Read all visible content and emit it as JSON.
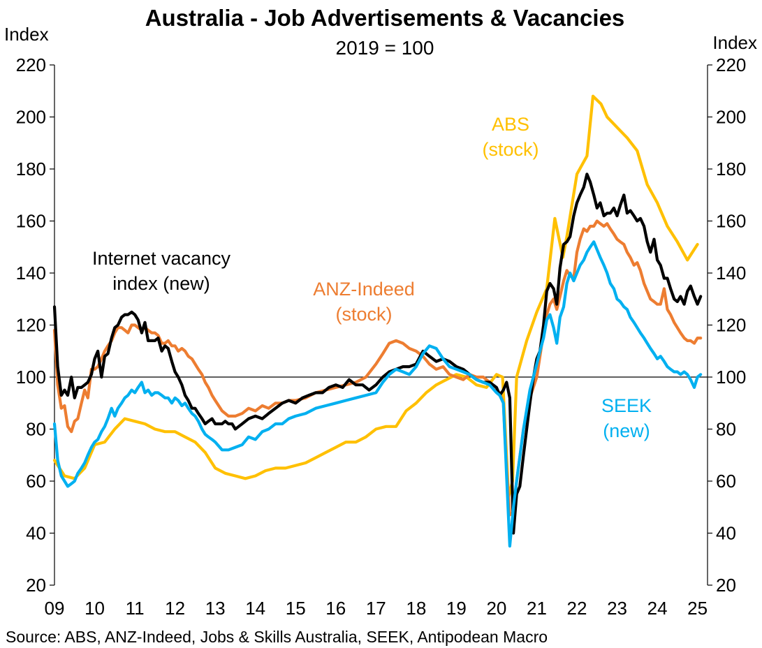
{
  "chart_data": {
    "type": "line",
    "title": "Australia - Job Advertisements & Vacancies",
    "subtitle": "2019 = 100",
    "ylabel_left": "Index",
    "ylabel_right": "Index",
    "ylim": [
      20,
      220
    ],
    "yticks": [
      20,
      40,
      60,
      80,
      100,
      120,
      140,
      160,
      180,
      200,
      220
    ],
    "xlim": [
      2009,
      2025.25
    ],
    "xticks": [
      {
        "value": 2009,
        "label": "09"
      },
      {
        "value": 2010,
        "label": "10"
      },
      {
        "value": 2011,
        "label": "11"
      },
      {
        "value": 2012,
        "label": "12"
      },
      {
        "value": 2013,
        "label": "13"
      },
      {
        "value": 2014,
        "label": "14"
      },
      {
        "value": 2015,
        "label": "15"
      },
      {
        "value": 2016,
        "label": "16"
      },
      {
        "value": 2017,
        "label": "17"
      },
      {
        "value": 2018,
        "label": "18"
      },
      {
        "value": 2019,
        "label": "19"
      },
      {
        "value": 2020,
        "label": "20"
      },
      {
        "value": 2021,
        "label": "21"
      },
      {
        "value": 2022,
        "label": "22"
      },
      {
        "value": 2023,
        "label": "23"
      },
      {
        "value": 2024,
        "label": "24"
      },
      {
        "value": 2025,
        "label": "25"
      }
    ],
    "reference_line": 100,
    "grid": false,
    "legend": "inline labels",
    "source": "Source: ABS, ANZ-Indeed, Jobs & Skills Australia, SEEK, Antipodean Macro",
    "series": [
      {
        "key": "abs",
        "label_lines": [
          "ABS",
          "(stock)"
        ],
        "color": "#FFC000",
        "x": [
          2009.0,
          2009.25,
          2009.5,
          2009.75,
          2010.0,
          2010.25,
          2010.5,
          2010.75,
          2011.0,
          2011.25,
          2011.5,
          2011.75,
          2012.0,
          2012.25,
          2012.5,
          2012.75,
          2013.0,
          2013.25,
          2013.5,
          2013.75,
          2014.0,
          2014.25,
          2014.5,
          2014.75,
          2015.0,
          2015.25,
          2015.5,
          2015.75,
          2016.0,
          2016.25,
          2016.5,
          2016.75,
          2017.0,
          2017.25,
          2017.5,
          2017.75,
          2018.0,
          2018.25,
          2018.5,
          2018.75,
          2019.0,
          2019.25,
          2019.5,
          2019.75,
          2020.0,
          2020.15,
          2020.3,
          2020.4,
          2020.5,
          2020.75,
          2021.0,
          2021.25,
          2021.45,
          2021.65,
          2021.75,
          2022.0,
          2022.25,
          2022.4,
          2022.6,
          2022.75,
          2023.0,
          2023.25,
          2023.5,
          2023.75,
          2024.0,
          2024.25,
          2024.5,
          2024.75,
          2025.0
        ],
        "y": [
          68,
          62,
          61,
          65,
          74,
          75,
          80,
          84,
          83,
          82,
          80,
          79,
          79,
          77,
          75,
          71,
          65,
          63,
          62,
          61,
          62,
          64,
          65,
          65,
          66,
          67,
          69,
          71,
          73,
          75,
          75,
          77,
          80,
          81,
          81,
          87,
          90,
          94,
          97,
          99,
          101,
          100,
          97,
          96,
          101,
          100,
          54,
          60,
          100,
          114,
          125,
          134,
          161,
          146,
          154,
          178,
          185,
          208,
          205,
          200,
          196,
          192,
          187,
          174,
          167,
          158,
          152,
          145,
          151
        ]
      },
      {
        "key": "anz",
        "label_lines": [
          "ANZ-Indeed",
          "(stock)"
        ],
        "color": "#ED7D31",
        "x": [
          2009.0,
          2009.08,
          2009.17,
          2009.25,
          2009.33,
          2009.42,
          2009.5,
          2009.58,
          2009.67,
          2009.75,
          2009.83,
          2009.92,
          2010.0,
          2010.08,
          2010.17,
          2010.25,
          2010.33,
          2010.42,
          2010.5,
          2010.58,
          2010.67,
          2010.75,
          2010.83,
          2010.92,
          2011.0,
          2011.08,
          2011.17,
          2011.25,
          2011.33,
          2011.42,
          2011.5,
          2011.58,
          2011.67,
          2011.75,
          2011.83,
          2011.92,
          2012.0,
          2012.08,
          2012.17,
          2012.25,
          2012.33,
          2012.42,
          2012.5,
          2012.58,
          2012.67,
          2012.75,
          2012.83,
          2012.92,
          2013.0,
          2013.17,
          2013.33,
          2013.5,
          2013.67,
          2013.83,
          2014.0,
          2014.17,
          2014.33,
          2014.5,
          2014.67,
          2014.83,
          2015.0,
          2015.25,
          2015.5,
          2015.75,
          2016.0,
          2016.25,
          2016.5,
          2016.75,
          2017.0,
          2017.17,
          2017.33,
          2017.5,
          2017.67,
          2017.83,
          2018.0,
          2018.17,
          2018.33,
          2018.5,
          2018.67,
          2018.83,
          2019.0,
          2019.17,
          2019.33,
          2019.5,
          2019.67,
          2019.83,
          2020.0,
          2020.08,
          2020.17,
          2020.25,
          2020.33,
          2020.42,
          2020.5,
          2020.67,
          2020.83,
          2021.0,
          2021.08,
          2021.17,
          2021.25,
          2021.33,
          2021.42,
          2021.5,
          2021.58,
          2021.67,
          2021.75,
          2021.83,
          2021.92,
          2022.0,
          2022.08,
          2022.17,
          2022.25,
          2022.33,
          2022.42,
          2022.5,
          2022.58,
          2022.67,
          2022.75,
          2022.83,
          2022.92,
          2023.0,
          2023.08,
          2023.17,
          2023.25,
          2023.33,
          2023.42,
          2023.5,
          2023.58,
          2023.67,
          2023.75,
          2023.83,
          2023.92,
          2024.0,
          2024.08,
          2024.17,
          2024.25,
          2024.33,
          2024.42,
          2024.5,
          2024.58,
          2024.67,
          2024.75,
          2024.83,
          2024.92,
          2025.0,
          2025.08
        ],
        "y": [
          118,
          97,
          88,
          89,
          81,
          79,
          83,
          84,
          90,
          95,
          92,
          103,
          103,
          104,
          107,
          110,
          112,
          114,
          117,
          119,
          119,
          118,
          117,
          120,
          120,
          119,
          118,
          119,
          118,
          117,
          117,
          116,
          113,
          113,
          114,
          112,
          112,
          110,
          111,
          110,
          108,
          107,
          105,
          103,
          101,
          98,
          96,
          93,
          91,
          87,
          85,
          85,
          86,
          88,
          87,
          89,
          88,
          90,
          90,
          91,
          91,
          92,
          94,
          95,
          96,
          97,
          98,
          100,
          105,
          109,
          113,
          114,
          113,
          111,
          110,
          108,
          105,
          103,
          104,
          101,
          100,
          99,
          101,
          100,
          100,
          98,
          95,
          94,
          90,
          65,
          47,
          48,
          60,
          80,
          92,
          100,
          108,
          117,
          124,
          128,
          130,
          126,
          131,
          137,
          141,
          139,
          138,
          148,
          153,
          157,
          156,
          158,
          158,
          160,
          159,
          158,
          159,
          157,
          155,
          153,
          152,
          151,
          148,
          146,
          143,
          144,
          141,
          136,
          133,
          130,
          129,
          128,
          128,
          134,
          126,
          124,
          121,
          119,
          117,
          115,
          114,
          114,
          113,
          115,
          115
        ]
      },
      {
        "key": "ivi",
        "label_lines": [
          "Internet vacancy",
          "index (new)"
        ],
        "color": "#000000",
        "x": [
          2009.0,
          2009.08,
          2009.17,
          2009.25,
          2009.33,
          2009.42,
          2009.5,
          2009.58,
          2009.67,
          2009.75,
          2009.83,
          2009.92,
          2010.0,
          2010.08,
          2010.17,
          2010.25,
          2010.33,
          2010.42,
          2010.5,
          2010.58,
          2010.67,
          2010.75,
          2010.83,
          2010.92,
          2011.0,
          2011.08,
          2011.17,
          2011.25,
          2011.33,
          2011.42,
          2011.5,
          2011.58,
          2011.67,
          2011.75,
          2011.83,
          2011.92,
          2012.0,
          2012.08,
          2012.17,
          2012.25,
          2012.33,
          2012.42,
          2012.5,
          2012.58,
          2012.67,
          2012.75,
          2012.83,
          2012.92,
          2013.0,
          2013.08,
          2013.17,
          2013.25,
          2013.33,
          2013.42,
          2013.5,
          2013.67,
          2013.83,
          2014.0,
          2014.17,
          2014.33,
          2014.5,
          2014.67,
          2014.83,
          2015.0,
          2015.17,
          2015.33,
          2015.5,
          2015.67,
          2015.83,
          2016.0,
          2016.17,
          2016.33,
          2016.5,
          2016.67,
          2016.83,
          2017.0,
          2017.17,
          2017.33,
          2017.5,
          2017.67,
          2017.83,
          2018.0,
          2018.17,
          2018.33,
          2018.5,
          2018.67,
          2018.83,
          2019.0,
          2019.17,
          2019.33,
          2019.5,
          2019.67,
          2019.83,
          2020.0,
          2020.08,
          2020.17,
          2020.25,
          2020.33,
          2020.42,
          2020.5,
          2020.58,
          2020.67,
          2020.75,
          2020.83,
          2020.92,
          2021.0,
          2021.08,
          2021.17,
          2021.25,
          2021.33,
          2021.42,
          2021.5,
          2021.58,
          2021.67,
          2021.75,
          2021.83,
          2021.92,
          2022.0,
          2022.08,
          2022.17,
          2022.25,
          2022.33,
          2022.42,
          2022.5,
          2022.58,
          2022.67,
          2022.75,
          2022.83,
          2022.92,
          2023.0,
          2023.08,
          2023.17,
          2023.25,
          2023.33,
          2023.42,
          2023.5,
          2023.58,
          2023.67,
          2023.75,
          2023.83,
          2023.92,
          2024.0,
          2024.08,
          2024.17,
          2024.25,
          2024.33,
          2024.42,
          2024.5,
          2024.58,
          2024.67,
          2024.75,
          2024.83,
          2024.92,
          2025.0,
          2025.08
        ],
        "y": [
          127,
          104,
          93,
          95,
          93,
          100,
          92,
          96,
          96,
          97,
          98,
          101,
          107,
          110,
          100,
          108,
          109,
          115,
          119,
          120,
          123,
          124,
          124,
          125,
          124,
          122,
          117,
          121,
          114,
          114,
          114,
          115,
          110,
          112,
          111,
          106,
          102,
          100,
          97,
          93,
          91,
          88,
          88,
          86,
          84,
          82,
          83,
          84,
          82,
          82,
          82,
          83,
          82,
          82,
          80,
          82,
          84,
          85,
          84,
          86,
          88,
          90,
          91,
          90,
          92,
          93,
          94,
          94,
          96,
          97,
          96,
          99,
          97,
          97,
          95,
          97,
          100,
          102,
          103,
          104,
          104,
          105,
          110,
          108,
          106,
          107,
          106,
          104,
          103,
          101,
          99,
          98,
          98,
          96,
          93,
          95,
          98,
          92,
          40,
          55,
          58,
          70,
          80,
          90,
          100,
          107,
          110,
          120,
          133,
          136,
          134,
          128,
          142,
          151,
          152,
          154,
          162,
          167,
          170,
          173,
          178,
          175,
          170,
          165,
          167,
          162,
          163,
          163,
          165,
          162,
          166,
          170,
          163,
          164,
          162,
          160,
          161,
          158,
          152,
          148,
          153,
          145,
          143,
          138,
          138,
          134,
          130,
          129,
          131,
          128,
          133,
          135,
          131,
          128,
          131
        ]
      },
      {
        "key": "seek",
        "label_lines": [
          "SEEK",
          "(new)"
        ],
        "color": "#00B0F0",
        "x": [
          2009.0,
          2009.08,
          2009.17,
          2009.25,
          2009.33,
          2009.42,
          2009.5,
          2009.58,
          2009.67,
          2009.75,
          2009.83,
          2009.92,
          2010.0,
          2010.08,
          2010.17,
          2010.25,
          2010.33,
          2010.42,
          2010.5,
          2010.58,
          2010.67,
          2010.75,
          2010.83,
          2010.92,
          2011.0,
          2011.08,
          2011.17,
          2011.25,
          2011.33,
          2011.42,
          2011.5,
          2011.58,
          2011.67,
          2011.75,
          2011.83,
          2011.92,
          2012.0,
          2012.08,
          2012.17,
          2012.25,
          2012.33,
          2012.42,
          2012.5,
          2012.58,
          2012.67,
          2012.75,
          2012.83,
          2012.92,
          2013.0,
          2013.17,
          2013.33,
          2013.5,
          2013.67,
          2013.83,
          2014.0,
          2014.17,
          2014.33,
          2014.5,
          2014.67,
          2014.83,
          2015.0,
          2015.25,
          2015.5,
          2015.75,
          2016.0,
          2016.25,
          2016.5,
          2016.75,
          2017.0,
          2017.17,
          2017.33,
          2017.5,
          2017.67,
          2017.83,
          2018.0,
          2018.17,
          2018.33,
          2018.5,
          2018.67,
          2018.83,
          2019.0,
          2019.17,
          2019.33,
          2019.5,
          2019.67,
          2019.83,
          2020.0,
          2020.08,
          2020.17,
          2020.25,
          2020.33,
          2020.42,
          2020.5,
          2020.67,
          2020.83,
          2021.0,
          2021.08,
          2021.17,
          2021.25,
          2021.33,
          2021.42,
          2021.5,
          2021.58,
          2021.67,
          2021.75,
          2021.83,
          2021.92,
          2022.0,
          2022.08,
          2022.17,
          2022.25,
          2022.33,
          2022.42,
          2022.5,
          2022.58,
          2022.67,
          2022.75,
          2022.83,
          2022.92,
          2023.0,
          2023.08,
          2023.17,
          2023.25,
          2023.33,
          2023.42,
          2023.5,
          2023.58,
          2023.67,
          2023.75,
          2023.83,
          2023.92,
          2024.0,
          2024.08,
          2024.17,
          2024.25,
          2024.33,
          2024.42,
          2024.5,
          2024.58,
          2024.67,
          2024.75,
          2024.83,
          2024.92,
          2025.0,
          2025.08
        ],
        "y": [
          82,
          68,
          62,
          60,
          58,
          59,
          60,
          63,
          65,
          67,
          70,
          73,
          75,
          76,
          79,
          81,
          84,
          88,
          85,
          88,
          90,
          92,
          93,
          95,
          94,
          96,
          98,
          94,
          95,
          93,
          94,
          94,
          93,
          92,
          92,
          90,
          92,
          91,
          89,
          90,
          88,
          86,
          85,
          83,
          80,
          78,
          77,
          76,
          75,
          72,
          72,
          73,
          74,
          77,
          76,
          79,
          80,
          82,
          82,
          84,
          85,
          86,
          88,
          89,
          90,
          91,
          92,
          93,
          94,
          98,
          101,
          103,
          102,
          101,
          104,
          109,
          112,
          111,
          107,
          104,
          103,
          102,
          101,
          99,
          98,
          97,
          94,
          93,
          90,
          62,
          35,
          50,
          60,
          80,
          95,
          105,
          110,
          115,
          122,
          124,
          119,
          113,
          123,
          127,
          136,
          140,
          137,
          140,
          143,
          145,
          148,
          150,
          152,
          149,
          146,
          143,
          140,
          136,
          134,
          130,
          129,
          127,
          126,
          123,
          121,
          119,
          117,
          115,
          113,
          111,
          109,
          107,
          108,
          106,
          104,
          103,
          102,
          102,
          101,
          102,
          101,
          99,
          96,
          100,
          101
        ]
      }
    ]
  }
}
